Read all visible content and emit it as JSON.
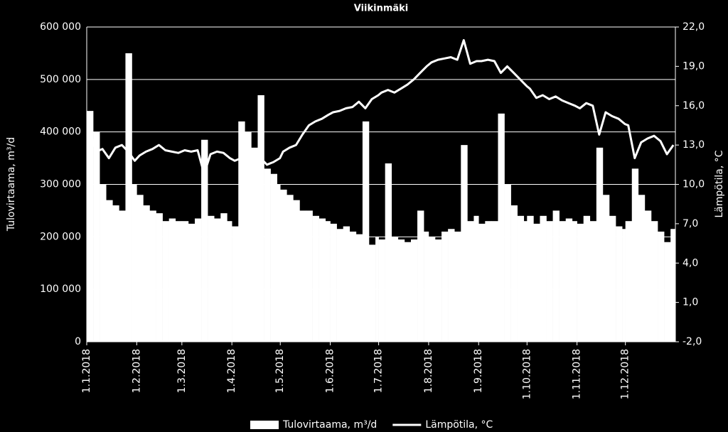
{
  "chart_data": {
    "type": "bar",
    "title": "Viikinmäki",
    "ylabel": "Tulovirtaama, m³/d",
    "y2label": "Lämpötila, °C",
    "x": [
      "1.1.2018",
      "5.1.2018",
      "9.1.2018",
      "13.1.2018",
      "17.1.2018",
      "21.1.2018",
      "25.1.2018",
      "29.1.2018",
      "1.2.2018",
      "5.2.2018",
      "9.2.2018",
      "13.2.2018",
      "17.2.2018",
      "21.2.2018",
      "25.2.2018",
      "1.3.2018",
      "5.3.2018",
      "9.3.2018",
      "13.3.2018",
      "17.3.2018",
      "21.3.2018",
      "25.3.2018",
      "29.3.2018",
      "1.4.2018",
      "5.4.2018",
      "9.4.2018",
      "13.4.2018",
      "17.4.2018",
      "21.4.2018",
      "25.4.2018",
      "29.4.2018",
      "1.5.2018",
      "5.5.2018",
      "9.5.2018",
      "13.5.2018",
      "17.5.2018",
      "21.5.2018",
      "25.5.2018",
      "29.5.2018",
      "1.6.2018",
      "5.6.2018",
      "9.6.2018",
      "13.6.2018",
      "17.6.2018",
      "21.6.2018",
      "25.6.2018",
      "29.6.2018",
      "1.7.2018",
      "5.7.2018",
      "9.7.2018",
      "13.7.2018",
      "17.7.2018",
      "21.7.2018",
      "25.7.2018",
      "29.7.2018",
      "1.8.2018",
      "5.8.2018",
      "9.8.2018",
      "13.8.2018",
      "17.8.2018",
      "21.8.2018",
      "25.8.2018",
      "29.8.2018",
      "1.9.2018",
      "5.9.2018",
      "9.9.2018",
      "13.9.2018",
      "17.9.2018",
      "21.9.2018",
      "25.9.2018",
      "29.9.2018",
      "1.10.2018",
      "5.10.2018",
      "9.10.2018",
      "13.10.2018",
      "17.10.2018",
      "21.10.2018",
      "25.10.2018",
      "29.10.2018",
      "1.11.2018",
      "5.11.2018",
      "9.11.2018",
      "13.11.2018",
      "17.11.2018",
      "21.11.2018",
      "25.11.2018",
      "29.11.2018",
      "1.12.2018",
      "5.12.2018",
      "9.12.2018",
      "13.12.2018",
      "17.12.2018",
      "21.12.2018",
      "25.12.2018",
      "29.12.2018"
    ],
    "series": [
      {
        "name": "Tulovirtaama, m³/d",
        "color": "#ffffff",
        "values": [
          440000,
          400000,
          300000,
          270000,
          260000,
          250000,
          550000,
          300000,
          280000,
          260000,
          250000,
          245000,
          230000,
          235000,
          230000,
          230000,
          225000,
          235000,
          385000,
          240000,
          235000,
          245000,
          230000,
          220000,
          420000,
          400000,
          370000,
          470000,
          330000,
          320000,
          300000,
          290000,
          280000,
          270000,
          250000,
          250000,
          240000,
          235000,
          230000,
          225000,
          215000,
          220000,
          210000,
          205000,
          420000,
          185000,
          200000,
          195000,
          340000,
          200000,
          195000,
          190000,
          195000,
          250000,
          210000,
          200000,
          195000,
          210000,
          215000,
          210000,
          375000,
          230000,
          240000,
          225000,
          230000,
          230000,
          435000,
          300000,
          260000,
          240000,
          230000,
          240000,
          225000,
          240000,
          230000,
          250000,
          230000,
          235000,
          230000,
          225000,
          240000,
          230000,
          370000,
          280000,
          240000,
          220000,
          215000,
          230000,
          330000,
          280000,
          250000,
          230000,
          210000,
          190000,
          215000
        ]
      },
      {
        "name": "Lämpötila, °C",
        "color": "#ffffff",
        "type": "line",
        "axis": "y2",
        "values": [
          14.0,
          12.5,
          12.7,
          12.0,
          12.8,
          13.0,
          12.5,
          11.8,
          12.2,
          12.5,
          12.7,
          13.0,
          12.6,
          12.5,
          12.4,
          12.6,
          12.5,
          12.6,
          10.8,
          12.3,
          12.5,
          12.4,
          12.0,
          11.8,
          12.0,
          12.3,
          12.0,
          12.0,
          11.5,
          11.7,
          12.0,
          12.5,
          12.8,
          13.0,
          13.8,
          14.5,
          14.8,
          15.0,
          15.3,
          15.5,
          15.6,
          15.8,
          15.9,
          16.3,
          15.8,
          16.5,
          16.8,
          17.0,
          17.2,
          17.0,
          17.3,
          17.6,
          18.0,
          18.5,
          19.0,
          19.3,
          19.5,
          19.6,
          19.7,
          19.5,
          21.0,
          19.2,
          19.4,
          19.4,
          19.5,
          19.4,
          18.5,
          19.0,
          18.5,
          18.0,
          17.5,
          17.3,
          16.6,
          16.8,
          16.5,
          16.7,
          16.4,
          16.2,
          16.0,
          15.8,
          16.2,
          16.0,
          13.8,
          15.5,
          15.2,
          15.0,
          14.6,
          14.5,
          12.0,
          13.2,
          13.5,
          13.7,
          13.3,
          12.3,
          13.0
        ]
      }
    ],
    "xlim": [
      "1.1.2018",
      "31.12.2018"
    ],
    "xticks": [
      "1.1.2018",
      "1.2.2018",
      "1.3.2018",
      "1.4.2018",
      "1.5.2018",
      "1.6.2018",
      "1.7.2018",
      "1.8.2018",
      "1.9.2018",
      "1.10.2018",
      "1.11.2018",
      "1.12.2018"
    ],
    "ylim": [
      0,
      600000
    ],
    "yticks": [
      0,
      {
        "value": 100000,
        "label": "100 000"
      },
      {
        "value": 200000,
        "label": "200 000"
      },
      {
        "value": 300000,
        "label": "300 000"
      },
      {
        "value": 400000,
        "label": "400 000"
      },
      {
        "value": 500000,
        "label": "500 000"
      },
      {
        "value": 600000,
        "label": "600 000"
      }
    ],
    "y2lim": [
      -2,
      22
    ],
    "y2ticks": [
      {
        "value": -2,
        "label": "-2,0"
      },
      {
        "value": 1,
        "label": "1,0"
      },
      {
        "value": 4,
        "label": "4,0"
      },
      {
        "value": 7,
        "label": "7,0"
      },
      {
        "value": 10,
        "label": "10,0"
      },
      {
        "value": 13,
        "label": "13,0"
      },
      {
        "value": 16,
        "label": "16,0"
      },
      {
        "value": 19,
        "label": "19,0"
      },
      {
        "value": 22,
        "label": "22,0"
      }
    ],
    "grid": true,
    "legend": "bottom"
  }
}
